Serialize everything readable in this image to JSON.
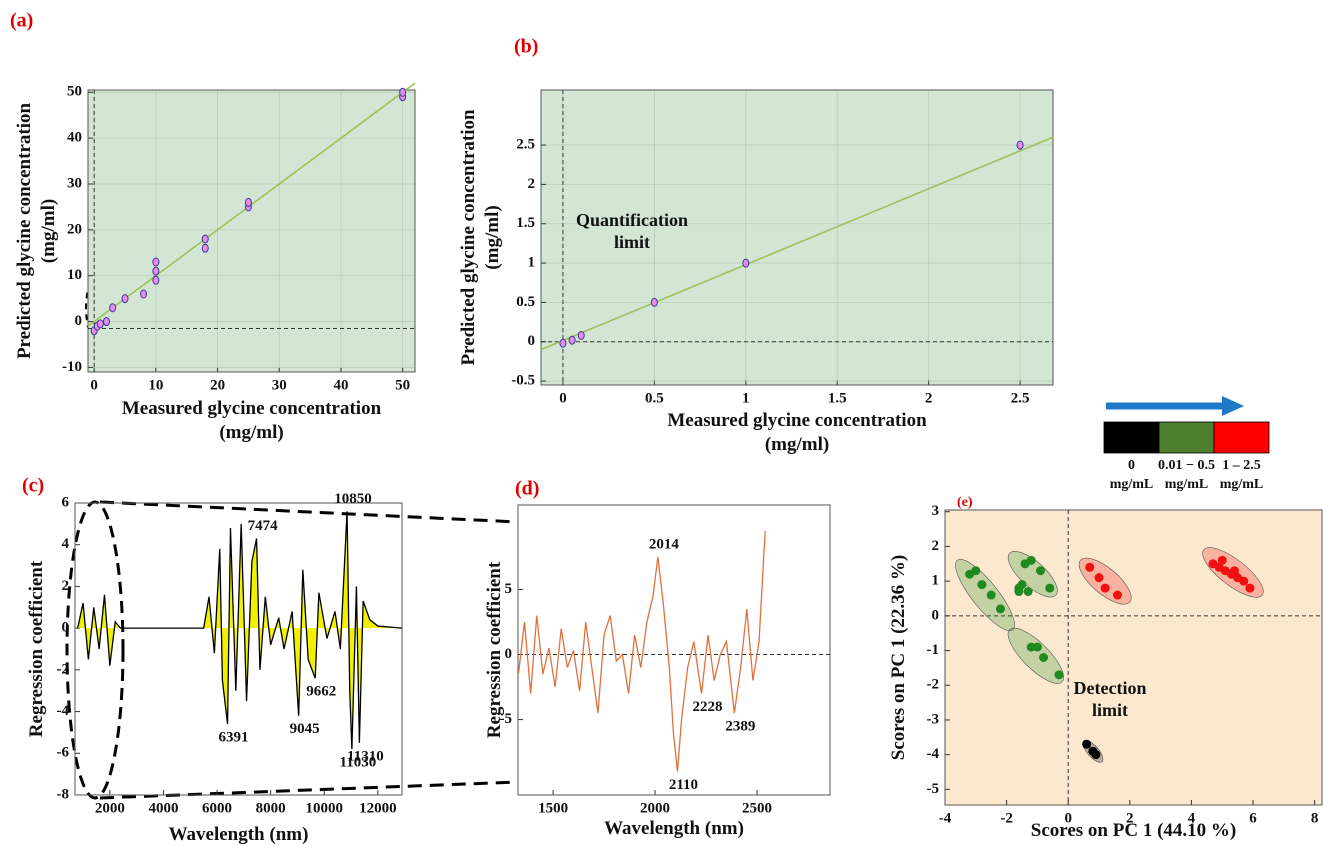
{
  "chart_data": [
    {
      "type": "scatter",
      "label": "(a)",
      "xlabel": [
        "Measured glycine concentration",
        "(mg/ml)"
      ],
      "ylabel": [
        "Predicted glycine concentration",
        "(mg/ml)"
      ],
      "xlim": [
        -1,
        52
      ],
      "ylim": [
        -11,
        50.5
      ],
      "xticks": [
        0,
        10,
        20,
        30,
        40,
        50
      ],
      "yticks": [
        -10,
        0,
        10,
        20,
        30,
        40,
        50
      ],
      "grid": true,
      "background": "#d3e6d3",
      "ref_lines": {
        "x": [
          0
        ],
        "y": [
          -1.5
        ]
      },
      "fit": {
        "x": [
          -1,
          52
        ],
        "y": [
          -1,
          52
        ],
        "color": "#9bc35a"
      },
      "points": {
        "x": [
          0,
          0.5,
          1,
          2,
          3,
          5,
          8,
          10,
          10,
          10,
          18,
          18,
          25,
          25,
          50,
          50
        ],
        "y": [
          -2,
          -1,
          -0.5,
          0,
          3,
          5,
          6,
          9,
          11,
          13,
          16,
          18,
          25,
          26,
          49,
          50
        ],
        "color": "#e58ee5",
        "edge": "#3a3a9a"
      }
    },
    {
      "type": "scatter",
      "label": "(b)",
      "xlabel": [
        "Measured glycine concentration",
        "(mg/ml)"
      ],
      "ylabel": [
        "Predicted glycine concentration",
        "(mg/ml)"
      ],
      "xlim": [
        -0.12,
        2.68
      ],
      "ylim": [
        -0.55,
        3.2
      ],
      "xticks": [
        0,
        0.5,
        1,
        1.5,
        2,
        2.5
      ],
      "yticks": [
        -0.5,
        0,
        0.5,
        1,
        1.5,
        2,
        2.5
      ],
      "grid": true,
      "background": "#d3e6d3",
      "ref_lines": {
        "x": [
          0
        ],
        "y": [
          0
        ]
      },
      "annotation": [
        "Quantification",
        "limit"
      ],
      "fit": {
        "x": [
          -0.12,
          2.68
        ],
        "y": [
          -0.1,
          2.6
        ],
        "color": "#9bc35a"
      },
      "points": {
        "x": [
          0,
          0.05,
          0.1,
          0.5,
          1,
          2.5
        ],
        "y": [
          -0.02,
          0.02,
          0.08,
          0.5,
          1,
          2.5
        ],
        "color": "#e58ee5",
        "edge": "#3a3a9a"
      }
    },
    {
      "type": "line",
      "label": "(c)",
      "xlabel": [
        "Wavelength (nm)"
      ],
      "ylabel": [
        "Regression coefficient"
      ],
      "xlim": [
        700,
        12900
      ],
      "ylim": [
        -8,
        6
      ],
      "xticks": [
        2000,
        4000,
        6000,
        8000,
        10000,
        12000
      ],
      "yticks": [
        -8,
        -6,
        -4,
        -2,
        0,
        2,
        4,
        6
      ],
      "line_color": "#000000",
      "fill": "#f0f000",
      "x": [
        800,
        1000,
        1200,
        1400,
        1600,
        1800,
        2000,
        2200,
        2400,
        5500,
        5700,
        5900,
        6100,
        6200,
        6391,
        6500,
        6700,
        6900,
        7100,
        7300,
        7474,
        7600,
        7800,
        8000,
        8300,
        8500,
        8800,
        9045,
        9200,
        9400,
        9662,
        9800,
        10100,
        10400,
        10600,
        10850,
        10950,
        11030,
        11200,
        11310,
        11450,
        11700,
        12000,
        12900
      ],
      "values": [
        0,
        1.2,
        -1.5,
        1,
        -1,
        1.6,
        -1.8,
        0.3,
        0,
        0,
        1.5,
        -1.2,
        3.8,
        -2.5,
        -4.6,
        4.8,
        -3,
        5,
        -3.5,
        3.2,
        4.3,
        -2,
        1.5,
        -0.8,
        0.5,
        -1,
        0.8,
        -4.2,
        2.8,
        -1.5,
        -2.4,
        1.7,
        -0.5,
        0.8,
        -1,
        5.6,
        -3,
        -5.8,
        2,
        -5.5,
        1.3,
        0.4,
        0.1,
        0
      ],
      "peaks": [
        {
          "x": 7474,
          "y": 4.3
        },
        {
          "x": 10850,
          "y": 5.6
        },
        {
          "x": 6391,
          "y": -4.6
        },
        {
          "x": 9045,
          "y": -4.2
        },
        {
          "x": 9662,
          "y": -2.4
        },
        {
          "x": 11030,
          "y": -5.8
        },
        {
          "x": 11310,
          "y": -5.5
        }
      ]
    },
    {
      "type": "line",
      "label": "(d)",
      "xlabel": [
        "Wavelength (nm)"
      ],
      "ylabel": [
        "Regression coefficient"
      ],
      "xlim": [
        1328,
        2858
      ],
      "ylim": [
        -10.8,
        11.5
      ],
      "xticks": [
        1500,
        2000,
        2500
      ],
      "yticks": [
        -5,
        0,
        5
      ],
      "ref_lines": {
        "x": [],
        "y": [
          0
        ]
      },
      "line_color": "#e0703c",
      "x": [
        1330,
        1360,
        1390,
        1420,
        1450,
        1480,
        1510,
        1540,
        1570,
        1600,
        1630,
        1660,
        1690,
        1720,
        1750,
        1780,
        1810,
        1840,
        1870,
        1900,
        1930,
        1960,
        1990,
        2014,
        2040,
        2070,
        2090,
        2110,
        2130,
        2160,
        2190,
        2228,
        2260,
        2290,
        2320,
        2350,
        2389,
        2420,
        2450,
        2480,
        2510,
        2540
      ],
      "values": [
        -1.5,
        2.5,
        -3,
        3,
        -1.5,
        0.5,
        -2.5,
        2,
        -1,
        0.3,
        -2.8,
        2.5,
        -1,
        -4.5,
        1.5,
        3,
        -0.5,
        0,
        -3,
        1.5,
        -1,
        2.5,
        4.5,
        7.5,
        4,
        -1,
        -6,
        -9,
        -5,
        -1,
        1,
        -3,
        1.5,
        -2,
        0,
        1,
        -4.5,
        -1,
        3.5,
        -2,
        1,
        9.5
      ],
      "peaks": [
        {
          "x": 2014,
          "y": 7.5
        },
        {
          "x": 2110,
          "y": -9
        },
        {
          "x": 2228,
          "y": -3
        },
        {
          "x": 2389,
          "y": -4.5
        }
      ]
    },
    {
      "type": "scatter",
      "label": "(e)",
      "xlabel": [
        "Scores on PC 1 (44.10 %)"
      ],
      "ylabel": [
        "Scores on PC 1 (22.36 %)"
      ],
      "xlim": [
        -4,
        8.24
      ],
      "ylim": [
        -5.45,
        3.05
      ],
      "xticks": [
        -4,
        -2,
        0,
        2,
        4,
        6,
        8
      ],
      "yticks": [
        -5,
        -4,
        -3,
        -2,
        -1,
        0,
        1,
        2,
        3
      ],
      "background": "#fbe8cf",
      "ref_lines": {
        "x": [
          0
        ],
        "y": [
          0
        ]
      },
      "annotation": [
        "Detection",
        "limit"
      ],
      "groups": [
        {
          "color": "#1f8a1f",
          "x": [
            -3.2,
            -3,
            -2.8,
            -2.5,
            -2.2
          ],
          "y": [
            1.2,
            1.3,
            0.9,
            0.6,
            0.2
          ],
          "ellipse": [
            [
              -3.6,
              1.6
            ],
            [
              -1.8,
              -0.4
            ]
          ]
        },
        {
          "color": "#1f8a1f",
          "x": [
            -1.6,
            -1.5,
            -1.3,
            -1.4,
            -1.2,
            -0.9,
            -0.6,
            -1.6
          ],
          "y": [
            0.8,
            0.9,
            0.7,
            1.5,
            1.6,
            1.3,
            0.8,
            0.7
          ],
          "ellipse": [
            [
              -1.9,
              1.8
            ],
            [
              -0.4,
              0.6
            ]
          ]
        },
        {
          "color": "#1f8a1f",
          "x": [
            -1.2,
            -1,
            -0.8,
            -0.3
          ],
          "y": [
            -0.9,
            -0.9,
            -1.2,
            -1.7
          ],
          "ellipse": [
            [
              -1.9,
              -0.4
            ],
            [
              -0.2,
              -1.9
            ]
          ]
        },
        {
          "color": "#f01010",
          "x": [
            0.7,
            1,
            1.2,
            1.6
          ],
          "y": [
            1.4,
            1.1,
            0.8,
            0.6
          ],
          "ellipse": [
            [
              0.4,
              1.6
            ],
            [
              2,
              0.4
            ]
          ]
        },
        {
          "color": "#f01010",
          "x": [
            4.7,
            4.9,
            5.1,
            5.3,
            5.5,
            5.7,
            5.9,
            5,
            5.4
          ],
          "y": [
            1.5,
            1.4,
            1.3,
            1.2,
            1.1,
            1,
            0.8,
            1.6,
            1.3
          ],
          "ellipse": [
            [
              4.4,
              1.9
            ],
            [
              6.3,
              0.6
            ]
          ]
        },
        {
          "color": "#000000",
          "x": [
            0.6,
            0.8,
            0.9
          ],
          "y": [
            -3.7,
            -3.9,
            -4
          ],
          "ellipse": [
            [
              0.5,
              -3.6
            ],
            [
              1.1,
              -4.2
            ]
          ]
        }
      ],
      "legend": {
        "colors": [
          "#000000",
          "#4e7f2f",
          "#ff0000"
        ],
        "labels": [
          [
            "0",
            "mg/mL"
          ],
          [
            "0.01 − 0.5",
            "mg/mL"
          ],
          [
            "1 – 2.5",
            "mg/mL"
          ]
        ]
      }
    }
  ]
}
